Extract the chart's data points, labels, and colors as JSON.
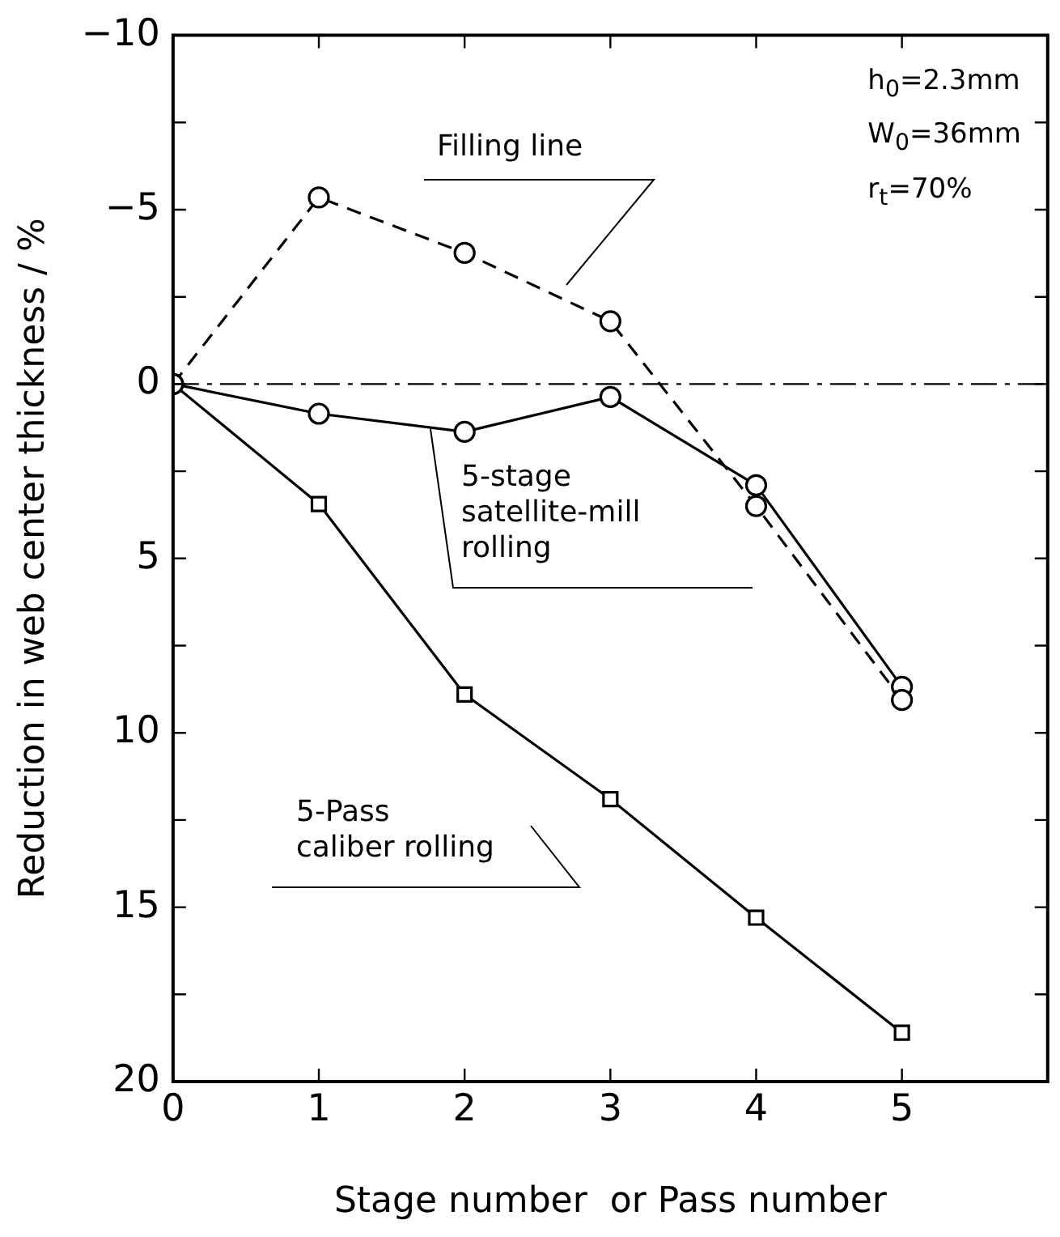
{
  "chart_data": {
    "type": "line",
    "xlabel": "Stage number  or Pass number",
    "ylabel": "Reduction in web center thickness / %",
    "x": [
      0,
      1,
      2,
      3,
      4,
      5
    ],
    "series": [
      {
        "name": "Filling line",
        "color": "#000000",
        "values": [
          0,
          -5.35,
          -3.76,
          -1.8,
          3.5,
          9.06
        ],
        "line_style": "dashed",
        "marker": "circle"
      },
      {
        "name": "5-stage satellite-mill rolling",
        "color": "#000000",
        "values": [
          0,
          0.85,
          1.37,
          0.37,
          2.9,
          8.68
        ],
        "line_style": "solid",
        "marker": "circle"
      },
      {
        "name": "5-Pass caliber rolling",
        "color": "#000000",
        "values": [
          0,
          3.44,
          8.9,
          11.9,
          15.3,
          18.6
        ],
        "line_style": "solid",
        "marker": "square"
      }
    ],
    "xlim": [
      0,
      6
    ],
    "xticks": [
      0,
      1,
      2,
      3,
      4,
      5
    ],
    "ylim": [
      20,
      -10
    ],
    "yticks": [
      -10,
      {
        "value": -7.5,
        "label": null
      },
      -5,
      {
        "value": -2.5,
        "label": null
      },
      0,
      {
        "value": 2.5,
        "label": null
      },
      5,
      {
        "value": 7.5,
        "label": null
      },
      10,
      {
        "value": 12.5,
        "label": null
      },
      15,
      {
        "value": 17.5,
        "label": null
      },
      20
    ],
    "ref_lines": [
      {
        "axis": "y",
        "value": 0,
        "line_style": "dashdot",
        "color": "#000000"
      }
    ],
    "annotations": [
      "h$_{0}$=2.3mm",
      "W$_{0}$=36mm",
      "r$_{t}$=70%"
    ],
    "grid": false,
    "legend": false
  }
}
